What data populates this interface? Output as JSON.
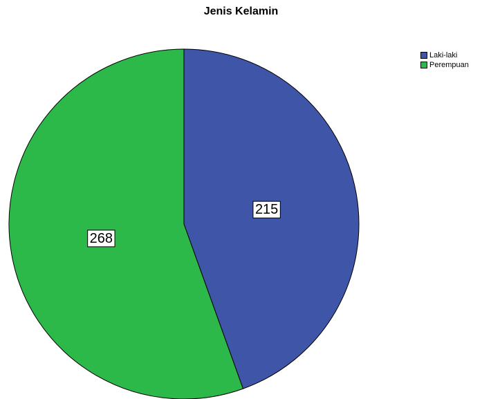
{
  "chart_data": {
    "type": "pie",
    "title": "Jenis Kelamin",
    "categories": [
      "Laki-laki",
      "Perempuan"
    ],
    "values": [
      215,
      268
    ],
    "colors": [
      "#3f56a8",
      "#2db84a"
    ],
    "data_labels": [
      "215",
      "268"
    ],
    "start_angle_deg": 0,
    "direction": "clockwise",
    "legend_position": "top-right"
  }
}
